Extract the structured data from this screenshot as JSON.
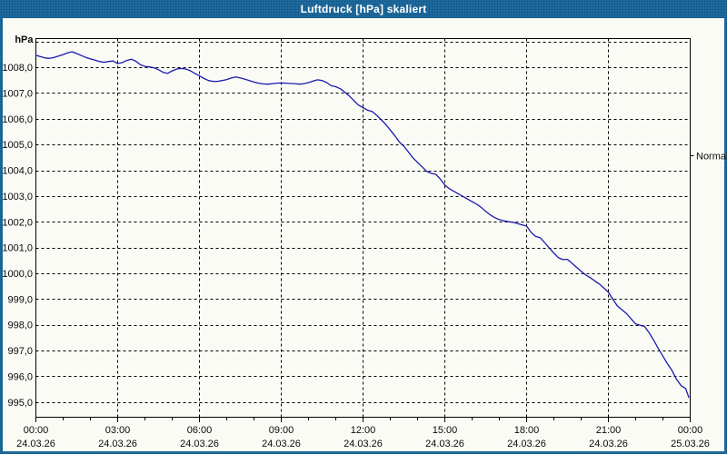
{
  "window": {
    "title": "Luftdruck [hPa] skaliert",
    "title_bar_color": "#1f6ea4",
    "content_background": "#fbfbf6"
  },
  "chart_data": {
    "type": "line",
    "title": "Luftdruck [hPa] skaliert",
    "unit_label": "hPa",
    "grid": "dashed-black",
    "legend": "none",
    "x_axis": {
      "range_hours": [
        0,
        24
      ],
      "minor_tick_every_hours": 1,
      "ticks": [
        {
          "hour": 0,
          "time": "00:00",
          "date": "24.03.26"
        },
        {
          "hour": 3,
          "time": "03:00",
          "date": "24.03.26"
        },
        {
          "hour": 6,
          "time": "06:00",
          "date": "24.03.26"
        },
        {
          "hour": 9,
          "time": "09:00",
          "date": "24.03.26"
        },
        {
          "hour": 12,
          "time": "12:00",
          "date": "24.03.26"
        },
        {
          "hour": 15,
          "time": "15:00",
          "date": "24.03.26"
        },
        {
          "hour": 18,
          "time": "18:00",
          "date": "24.03.26"
        },
        {
          "hour": 21,
          "time": "21:00",
          "date": "24.03.26"
        },
        {
          "hour": 24,
          "time": "00:00",
          "date": "25.03.26"
        }
      ]
    },
    "y_axis": {
      "range": [
        994.43,
        1009.13
      ],
      "grid_values": [
        1009,
        1008,
        1007,
        1006,
        1005,
        1004,
        1003,
        1002,
        1001,
        1000,
        999,
        998,
        997,
        996,
        995
      ],
      "tick_values": [
        1008,
        1007,
        1006,
        1005,
        1004,
        1003,
        1002,
        1001,
        1000,
        999,
        998,
        997,
        996,
        995
      ],
      "tick_labels": [
        "1008,0",
        "1007,0",
        "1006,0",
        "1005,0",
        "1004,0",
        "1003,0",
        "1002,0",
        "1001,0",
        "1000,0",
        "999,0",
        "998,0",
        "997,0",
        "996,0",
        "995,0"
      ]
    },
    "annotations": [
      {
        "label": "Normal",
        "value": 1004.6,
        "side": "right"
      }
    ],
    "series": [
      {
        "name": "Luftdruck",
        "color": "#1a1aae",
        "points": [
          [
            0.0,
            1008.48
          ],
          [
            0.17,
            1008.43
          ],
          [
            0.33,
            1008.38
          ],
          [
            0.5,
            1008.36
          ],
          [
            0.67,
            1008.4
          ],
          [
            0.83,
            1008.45
          ],
          [
            1.0,
            1008.51
          ],
          [
            1.17,
            1008.58
          ],
          [
            1.33,
            1008.62
          ],
          [
            1.5,
            1008.55
          ],
          [
            1.67,
            1008.47
          ],
          [
            1.83,
            1008.4
          ],
          [
            2.0,
            1008.34
          ],
          [
            2.17,
            1008.29
          ],
          [
            2.33,
            1008.24
          ],
          [
            2.5,
            1008.21
          ],
          [
            2.67,
            1008.24
          ],
          [
            2.83,
            1008.26
          ],
          [
            3.0,
            1008.16
          ],
          [
            3.17,
            1008.2
          ],
          [
            3.33,
            1008.28
          ],
          [
            3.5,
            1008.33
          ],
          [
            3.67,
            1008.25
          ],
          [
            3.83,
            1008.12
          ],
          [
            4.0,
            1008.05
          ],
          [
            4.17,
            1008.03
          ],
          [
            4.33,
            1008.0
          ],
          [
            4.5,
            1007.92
          ],
          [
            4.67,
            1007.82
          ],
          [
            4.83,
            1007.78
          ],
          [
            5.0,
            1007.88
          ],
          [
            5.17,
            1007.95
          ],
          [
            5.33,
            1007.97
          ],
          [
            5.5,
            1007.95
          ],
          [
            5.67,
            1007.88
          ],
          [
            5.83,
            1007.78
          ],
          [
            6.0,
            1007.68
          ],
          [
            6.17,
            1007.58
          ],
          [
            6.33,
            1007.5
          ],
          [
            6.5,
            1007.47
          ],
          [
            6.67,
            1007.47
          ],
          [
            6.83,
            1007.5
          ],
          [
            7.0,
            1007.54
          ],
          [
            7.17,
            1007.6
          ],
          [
            7.33,
            1007.64
          ],
          [
            7.5,
            1007.6
          ],
          [
            7.67,
            1007.55
          ],
          [
            7.83,
            1007.5
          ],
          [
            8.0,
            1007.44
          ],
          [
            8.17,
            1007.4
          ],
          [
            8.33,
            1007.37
          ],
          [
            8.5,
            1007.36
          ],
          [
            8.67,
            1007.38
          ],
          [
            8.83,
            1007.4
          ],
          [
            9.0,
            1007.41
          ],
          [
            9.17,
            1007.4
          ],
          [
            9.33,
            1007.39
          ],
          [
            9.5,
            1007.38
          ],
          [
            9.67,
            1007.36
          ],
          [
            9.83,
            1007.38
          ],
          [
            10.0,
            1007.42
          ],
          [
            10.17,
            1007.48
          ],
          [
            10.33,
            1007.53
          ],
          [
            10.5,
            1007.5
          ],
          [
            10.67,
            1007.42
          ],
          [
            10.83,
            1007.3
          ],
          [
            11.0,
            1007.26
          ],
          [
            11.17,
            1007.18
          ],
          [
            11.33,
            1007.05
          ],
          [
            11.5,
            1006.9
          ],
          [
            11.67,
            1006.72
          ],
          [
            11.83,
            1006.55
          ],
          [
            12.0,
            1006.45
          ],
          [
            12.17,
            1006.35
          ],
          [
            12.33,
            1006.3
          ],
          [
            12.5,
            1006.15
          ],
          [
            12.67,
            1005.98
          ],
          [
            12.83,
            1005.8
          ],
          [
            13.0,
            1005.58
          ],
          [
            13.17,
            1005.35
          ],
          [
            13.33,
            1005.12
          ],
          [
            13.5,
            1004.95
          ],
          [
            13.67,
            1004.72
          ],
          [
            13.83,
            1004.5
          ],
          [
            14.0,
            1004.32
          ],
          [
            14.17,
            1004.15
          ],
          [
            14.33,
            1003.98
          ],
          [
            14.5,
            1003.9
          ],
          [
            14.67,
            1003.86
          ],
          [
            14.83,
            1003.68
          ],
          [
            15.0,
            1003.44
          ],
          [
            15.17,
            1003.3
          ],
          [
            15.33,
            1003.2
          ],
          [
            15.5,
            1003.1
          ],
          [
            15.67,
            1003.0
          ],
          [
            15.83,
            1002.9
          ],
          [
            16.0,
            1002.8
          ],
          [
            16.17,
            1002.7
          ],
          [
            16.33,
            1002.58
          ],
          [
            16.5,
            1002.42
          ],
          [
            16.67,
            1002.28
          ],
          [
            16.83,
            1002.18
          ],
          [
            17.0,
            1002.1
          ],
          [
            17.17,
            1002.05
          ],
          [
            17.33,
            1002.02
          ],
          [
            17.5,
            1002.0
          ],
          [
            17.67,
            1001.95
          ],
          [
            17.83,
            1001.9
          ],
          [
            18.0,
            1001.85
          ],
          [
            18.17,
            1001.6
          ],
          [
            18.33,
            1001.45
          ],
          [
            18.5,
            1001.4
          ],
          [
            18.67,
            1001.2
          ],
          [
            18.83,
            1001.0
          ],
          [
            19.0,
            1000.8
          ],
          [
            19.17,
            1000.62
          ],
          [
            19.33,
            1000.55
          ],
          [
            19.5,
            1000.56
          ],
          [
            19.67,
            1000.4
          ],
          [
            19.83,
            1000.25
          ],
          [
            20.0,
            1000.1
          ],
          [
            20.17,
            999.95
          ],
          [
            20.33,
            999.85
          ],
          [
            20.5,
            999.72
          ],
          [
            20.67,
            999.6
          ],
          [
            20.83,
            999.45
          ],
          [
            21.0,
            999.28
          ],
          [
            21.17,
            999.0
          ],
          [
            21.33,
            998.75
          ],
          [
            21.5,
            998.6
          ],
          [
            21.67,
            998.45
          ],
          [
            21.83,
            998.25
          ],
          [
            22.0,
            998.05
          ],
          [
            22.17,
            998.0
          ],
          [
            22.33,
            997.95
          ],
          [
            22.5,
            997.7
          ],
          [
            22.67,
            997.4
          ],
          [
            22.83,
            997.1
          ],
          [
            23.0,
            996.8
          ],
          [
            23.17,
            996.5
          ],
          [
            23.33,
            996.25
          ],
          [
            23.5,
            995.9
          ],
          [
            23.67,
            995.65
          ],
          [
            23.83,
            995.55
          ],
          [
            23.95,
            995.2
          ]
        ]
      }
    ]
  }
}
